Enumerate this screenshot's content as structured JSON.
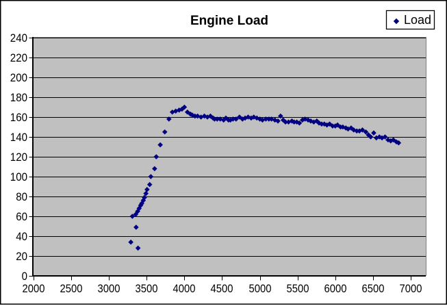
{
  "chart": {
    "title": "Engine Load",
    "legend": {
      "label": "Load"
    },
    "colors": {
      "plot_bg": "#C0C0C0",
      "gridline": "#000000",
      "axis": "#000000",
      "plot_border": "#808080",
      "marker": "#000080",
      "legend_border": "#000000",
      "outer_border": "#000000"
    }
  },
  "chart_data": {
    "type": "scatter",
    "title": "Engine Load",
    "xlabel": "",
    "ylabel": "",
    "xlim": [
      2000,
      7200
    ],
    "ylim": [
      0,
      240
    ],
    "x_ticks": [
      2000,
      2500,
      3000,
      3500,
      4000,
      4500,
      5000,
      5500,
      6000,
      6500,
      7000
    ],
    "y_ticks": [
      0,
      20,
      40,
      60,
      80,
      100,
      120,
      140,
      160,
      180,
      200,
      220,
      240
    ],
    "grid": "horizontal",
    "legend_position": "top-right",
    "series": [
      {
        "name": "Load",
        "marker": "diamond",
        "color": "#000080",
        "points": [
          [
            3290,
            34
          ],
          [
            3385,
            28
          ],
          [
            3360,
            49
          ],
          [
            3310,
            60
          ],
          [
            3355,
            62
          ],
          [
            3380,
            65
          ],
          [
            3400,
            68
          ],
          [
            3420,
            71
          ],
          [
            3435,
            73
          ],
          [
            3455,
            76
          ],
          [
            3470,
            79
          ],
          [
            3490,
            83
          ],
          [
            3505,
            87
          ],
          [
            3540,
            92
          ],
          [
            3555,
            100
          ],
          [
            3605,
            108
          ],
          [
            3627,
            120
          ],
          [
            3680,
            132
          ],
          [
            3740,
            145
          ],
          [
            3795,
            158
          ],
          [
            3840,
            165
          ],
          [
            3885,
            166
          ],
          [
            3930,
            167
          ],
          [
            3968,
            168
          ],
          [
            4000,
            170
          ],
          [
            4040,
            165
          ],
          [
            4080,
            163
          ],
          [
            4105,
            162
          ],
          [
            4140,
            161
          ],
          [
            4175,
            161
          ],
          [
            4220,
            160
          ],
          [
            4265,
            161
          ],
          [
            4305,
            160
          ],
          [
            4345,
            161
          ],
          [
            4380,
            159
          ],
          [
            4400,
            158
          ],
          [
            4435,
            158
          ],
          [
            4475,
            158
          ],
          [
            4520,
            157
          ],
          [
            4550,
            159
          ],
          [
            4585,
            157
          ],
          [
            4610,
            157
          ],
          [
            4645,
            158
          ],
          [
            4685,
            158
          ],
          [
            4730,
            160
          ],
          [
            4770,
            158
          ],
          [
            4805,
            159
          ],
          [
            4845,
            160
          ],
          [
            4885,
            159
          ],
          [
            4920,
            160
          ],
          [
            4960,
            159
          ],
          [
            5000,
            158
          ],
          [
            5035,
            157
          ],
          [
            5080,
            158
          ],
          [
            5120,
            158
          ],
          [
            5155,
            158
          ],
          [
            5200,
            157
          ],
          [
            5240,
            156
          ],
          [
            5275,
            161
          ],
          [
            5310,
            157
          ],
          [
            5340,
            155
          ],
          [
            5380,
            155
          ],
          [
            5425,
            156
          ],
          [
            5455,
            155
          ],
          [
            5490,
            155
          ],
          [
            5525,
            154
          ],
          [
            5565,
            157
          ],
          [
            5600,
            158
          ],
          [
            5640,
            157
          ],
          [
            5675,
            156
          ],
          [
            5715,
            155
          ],
          [
            5755,
            156
          ],
          [
            5785,
            154
          ],
          [
            5820,
            153
          ],
          [
            5855,
            153
          ],
          [
            5890,
            152
          ],
          [
            5925,
            153
          ],
          [
            5965,
            151
          ],
          [
            6000,
            151
          ],
          [
            6030,
            152
          ],
          [
            6070,
            150
          ],
          [
            6100,
            150
          ],
          [
            6140,
            149
          ],
          [
            6170,
            148
          ],
          [
            6210,
            149
          ],
          [
            6245,
            147
          ],
          [
            6285,
            146
          ],
          [
            6320,
            146
          ],
          [
            6360,
            147
          ],
          [
            6405,
            145
          ],
          [
            6440,
            142
          ],
          [
            6470,
            140
          ],
          [
            6510,
            144
          ],
          [
            6545,
            139
          ],
          [
            6585,
            140
          ],
          [
            6620,
            139
          ],
          [
            6660,
            140
          ],
          [
            6700,
            137
          ],
          [
            6735,
            136
          ],
          [
            6770,
            137
          ],
          [
            6810,
            135
          ],
          [
            6840,
            134
          ]
        ]
      }
    ]
  }
}
